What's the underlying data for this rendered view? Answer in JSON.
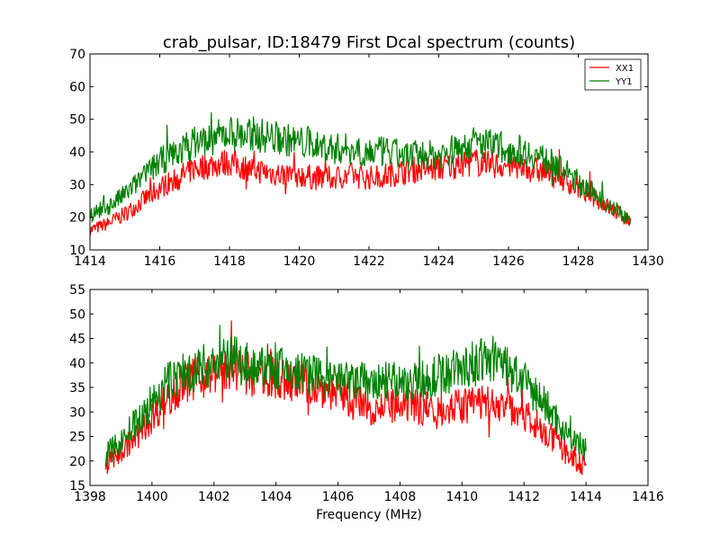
{
  "title": "crab_pulsar, ID:18479 First Dcal spectrum (counts)",
  "xlabel": "Frequency (MHz)",
  "colors": {
    "XX1": "#ff0000",
    "YY1": "#008000",
    "axes": "#000000",
    "background": "#ffffff"
  },
  "chart_data": [
    {
      "type": "line",
      "title": "crab_pulsar, ID:18479 First Dcal spectrum (counts)",
      "xlabel": "",
      "ylabel": "",
      "xlim": [
        1414,
        1430
      ],
      "ylim": [
        10,
        70
      ],
      "xticks": [
        1414,
        1416,
        1418,
        1420,
        1422,
        1424,
        1426,
        1428,
        1430
      ],
      "yticks": [
        10,
        20,
        30,
        40,
        50,
        60,
        70
      ],
      "grid": false,
      "legend": {
        "position": "top-right",
        "entries": [
          "XX1",
          "YY1"
        ]
      },
      "x": [
        1414.0,
        1414.5,
        1415.0,
        1415.5,
        1416.0,
        1416.5,
        1417.0,
        1417.5,
        1418.0,
        1418.5,
        1419.0,
        1419.5,
        1420.0,
        1420.5,
        1421.0,
        1421.5,
        1422.0,
        1422.5,
        1423.0,
        1423.5,
        1424.0,
        1424.5,
        1425.0,
        1425.5,
        1426.0,
        1426.5,
        1427.0,
        1427.5,
        1428.0,
        1428.5,
        1429.0,
        1429.5
      ],
      "series": [
        {
          "name": "XX1",
          "values": [
            16,
            18,
            21,
            25,
            29,
            32,
            35,
            36,
            37,
            35,
            34,
            33,
            33,
            32,
            32,
            33,
            32,
            33,
            34,
            35,
            35,
            36,
            37,
            36,
            36,
            35,
            34,
            32,
            29,
            26,
            22,
            19
          ]
        },
        {
          "name": "YY1",
          "values": [
            21,
            23,
            27,
            32,
            37,
            40,
            43,
            44,
            46,
            45,
            45,
            44,
            43,
            42,
            41,
            41,
            40,
            40,
            39,
            39,
            39,
            41,
            43,
            42,
            41,
            40,
            38,
            35,
            31,
            27,
            23,
            19
          ]
        }
      ]
    },
    {
      "type": "line",
      "title": "",
      "xlabel": "Frequency (MHz)",
      "ylabel": "",
      "xlim": [
        1398,
        1416
      ],
      "ylim": [
        15,
        55
      ],
      "xticks": [
        1398,
        1400,
        1402,
        1404,
        1406,
        1408,
        1410,
        1412,
        1414,
        1416
      ],
      "yticks": [
        15,
        20,
        25,
        30,
        35,
        40,
        45,
        50,
        55
      ],
      "grid": false,
      "x": [
        1398.5,
        1399.0,
        1399.5,
        1400.0,
        1400.5,
        1401.0,
        1401.5,
        1402.0,
        1402.5,
        1403.0,
        1403.5,
        1404.0,
        1404.5,
        1405.0,
        1405.5,
        1406.0,
        1406.5,
        1407.0,
        1407.5,
        1408.0,
        1408.5,
        1409.0,
        1409.5,
        1410.0,
        1410.5,
        1411.0,
        1411.5,
        1412.0,
        1412.5,
        1413.0,
        1413.5,
        1414.0
      ],
      "series": [
        {
          "name": "XX1",
          "values": [
            19,
            22,
            25,
            29,
            33,
            36,
            37,
            38,
            39,
            38,
            37,
            37,
            36,
            36,
            35,
            34,
            32,
            31,
            31,
            31,
            31,
            31,
            31,
            31,
            32,
            32,
            31,
            30,
            27,
            24,
            21,
            19
          ]
        },
        {
          "name": "YY1",
          "values": [
            21,
            24,
            28,
            32,
            36,
            38,
            39,
            40,
            41,
            40,
            39,
            39,
            38,
            38,
            37,
            36,
            36,
            36,
            36,
            36,
            36,
            37,
            38,
            39,
            40,
            41,
            39,
            36,
            33,
            29,
            25,
            22
          ]
        }
      ]
    }
  ]
}
